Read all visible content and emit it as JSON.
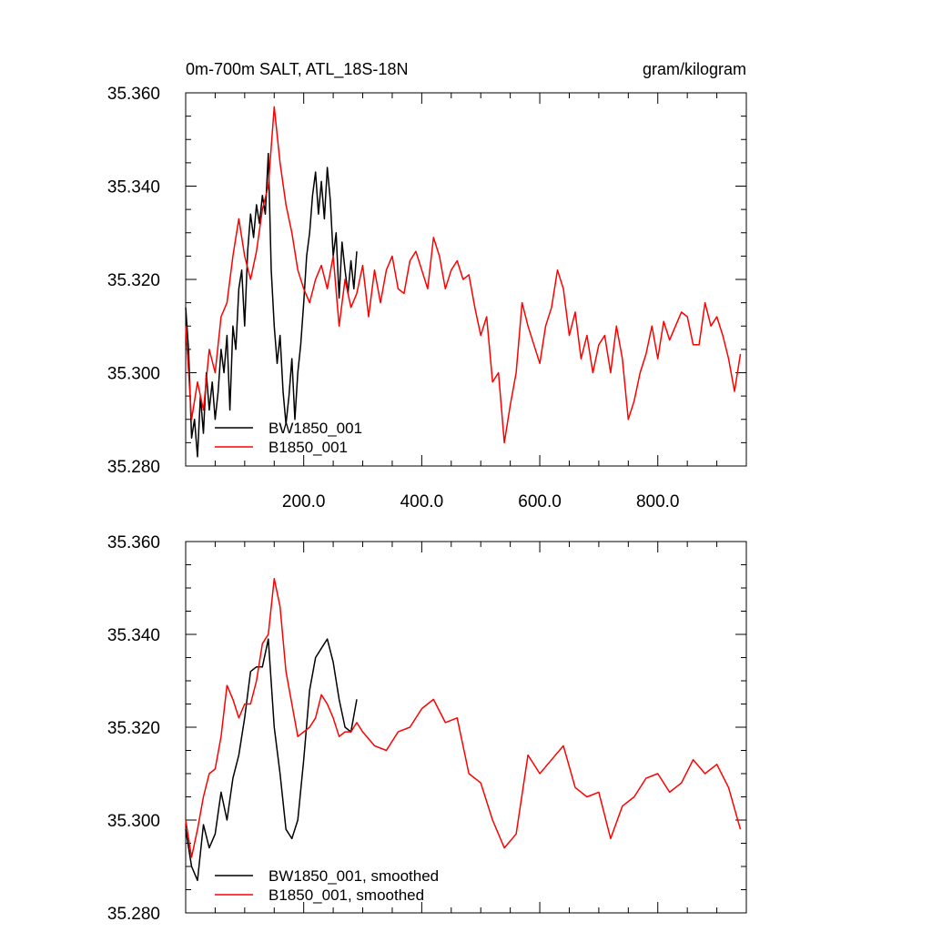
{
  "chart_data": [
    {
      "type": "line",
      "title": "0m-700m SALT, ATL_18S-18N",
      "units": "gram/kilogram",
      "xlim": [
        0,
        950
      ],
      "ylim": [
        35.28,
        35.36
      ],
      "xticks": [
        200,
        400,
        600,
        800
      ],
      "xtick_labels": [
        "200.0",
        "400.0",
        "600.0",
        "800.0"
      ],
      "yticks": [
        35.28,
        35.3,
        35.32,
        35.34,
        35.36
      ],
      "ytick_labels": [
        "35.280",
        "35.300",
        "35.320",
        "35.340",
        "35.360"
      ],
      "legend": "bottom-left",
      "series": [
        {
          "name": "BW1850_001",
          "color": "#000000",
          "x": [
            0,
            5,
            10,
            15,
            20,
            25,
            30,
            35,
            40,
            45,
            50,
            55,
            60,
            65,
            70,
            75,
            80,
            85,
            90,
            95,
            100,
            105,
            110,
            115,
            120,
            125,
            130,
            135,
            140,
            145,
            150,
            155,
            160,
            165,
            170,
            175,
            180,
            185,
            190,
            195,
            200,
            205,
            210,
            215,
            220,
            225,
            230,
            235,
            240,
            245,
            250,
            255,
            260,
            265,
            270,
            275,
            280,
            285,
            290
          ],
          "values": [
            35.314,
            35.305,
            35.286,
            35.29,
            35.282,
            35.295,
            35.287,
            35.3,
            35.292,
            35.298,
            35.29,
            35.296,
            35.305,
            35.3,
            35.308,
            35.292,
            35.31,
            35.305,
            35.318,
            35.322,
            35.31,
            35.326,
            35.334,
            35.329,
            35.336,
            35.332,
            35.338,
            35.334,
            35.347,
            35.322,
            35.31,
            35.302,
            35.308,
            35.296,
            35.289,
            35.295,
            35.303,
            35.29,
            35.3,
            35.306,
            35.315,
            35.325,
            35.33,
            35.338,
            35.343,
            35.334,
            35.341,
            35.333,
            35.344,
            35.337,
            35.325,
            35.33,
            35.316,
            35.328,
            35.322,
            35.317,
            35.324,
            35.318,
            35.326
          ]
        },
        {
          "name": "B1850_001",
          "color": "#ff0000",
          "x": [
            0,
            10,
            20,
            30,
            40,
            50,
            60,
            70,
            80,
            90,
            100,
            110,
            120,
            130,
            140,
            150,
            160,
            170,
            180,
            190,
            200,
            210,
            220,
            230,
            240,
            250,
            260,
            270,
            280,
            290,
            300,
            310,
            320,
            330,
            340,
            350,
            360,
            370,
            380,
            390,
            400,
            410,
            420,
            430,
            440,
            450,
            460,
            470,
            480,
            490,
            500,
            510,
            520,
            530,
            540,
            550,
            560,
            570,
            580,
            590,
            600,
            610,
            620,
            630,
            640,
            650,
            660,
            670,
            680,
            690,
            700,
            710,
            720,
            730,
            740,
            750,
            760,
            770,
            780,
            790,
            800,
            810,
            820,
            830,
            840,
            850,
            860,
            870,
            880,
            890,
            900,
            910,
            920,
            930,
            940
          ],
          "values": [
            35.31,
            35.29,
            35.298,
            35.292,
            35.305,
            35.3,
            35.312,
            35.315,
            35.325,
            35.333,
            35.325,
            35.32,
            35.326,
            35.335,
            35.34,
            35.357,
            35.345,
            35.336,
            35.33,
            35.322,
            35.318,
            35.315,
            35.32,
            35.323,
            35.318,
            35.325,
            35.31,
            35.32,
            35.314,
            35.317,
            35.323,
            35.312,
            35.322,
            35.315,
            35.322,
            35.325,
            35.318,
            35.317,
            35.324,
            35.326,
            35.322,
            35.318,
            35.329,
            35.325,
            35.318,
            35.322,
            35.324,
            35.32,
            35.321,
            35.314,
            35.308,
            35.312,
            35.298,
            35.3,
            35.285,
            35.293,
            35.3,
            35.315,
            35.31,
            35.306,
            35.302,
            35.31,
            35.314,
            35.322,
            35.318,
            35.308,
            35.313,
            35.303,
            35.308,
            35.3,
            35.306,
            35.308,
            35.3,
            35.31,
            35.303,
            35.29,
            35.294,
            35.3,
            35.304,
            35.31,
            35.303,
            35.311,
            35.307,
            35.31,
            35.313,
            35.312,
            35.306,
            35.306,
            35.315,
            35.31,
            35.312,
            35.308,
            35.303,
            35.296,
            35.304
          ]
        }
      ]
    },
    {
      "type": "line",
      "xlim": [
        0,
        950
      ],
      "ylim": [
        35.28,
        35.36
      ],
      "yticks": [
        35.28,
        35.3,
        35.32,
        35.34,
        35.36
      ],
      "ytick_labels": [
        "35.280",
        "35.300",
        "35.320",
        "35.340",
        "35.360"
      ],
      "legend": "bottom-left",
      "series": [
        {
          "name": "BW1850_001, smoothed",
          "color": "#000000",
          "x": [
            0,
            10,
            20,
            30,
            40,
            50,
            60,
            70,
            80,
            90,
            100,
            110,
            120,
            130,
            140,
            150,
            160,
            170,
            180,
            190,
            200,
            210,
            220,
            230,
            240,
            250,
            260,
            270,
            280,
            290
          ],
          "values": [
            35.298,
            35.29,
            35.287,
            35.299,
            35.294,
            35.297,
            35.306,
            35.3,
            35.309,
            35.314,
            35.322,
            35.332,
            35.333,
            35.333,
            35.339,
            35.32,
            35.31,
            35.298,
            35.296,
            35.3,
            35.313,
            35.328,
            35.335,
            35.337,
            35.339,
            35.334,
            35.326,
            35.32,
            35.319,
            35.326
          ]
        },
        {
          "name": "B1850_001, smoothed",
          "color": "#ff0000",
          "x": [
            0,
            10,
            20,
            30,
            40,
            50,
            60,
            70,
            80,
            90,
            100,
            110,
            120,
            130,
            140,
            150,
            160,
            170,
            180,
            190,
            200,
            210,
            220,
            230,
            240,
            250,
            260,
            270,
            280,
            290,
            300,
            320,
            340,
            360,
            380,
            400,
            420,
            440,
            460,
            480,
            500,
            520,
            540,
            560,
            580,
            600,
            620,
            640,
            660,
            680,
            700,
            720,
            740,
            760,
            780,
            800,
            820,
            840,
            860,
            880,
            900,
            920,
            940
          ],
          "values": [
            35.3,
            35.292,
            35.298,
            35.305,
            35.31,
            35.311,
            35.318,
            35.329,
            35.326,
            35.322,
            35.325,
            35.325,
            35.33,
            35.338,
            35.34,
            35.352,
            35.346,
            35.332,
            35.325,
            35.318,
            35.319,
            35.32,
            35.322,
            35.327,
            35.325,
            35.322,
            35.318,
            35.319,
            35.319,
            35.321,
            35.319,
            35.316,
            35.315,
            35.319,
            35.32,
            35.324,
            35.326,
            35.321,
            35.322,
            35.31,
            35.308,
            35.3,
            35.294,
            35.297,
            35.314,
            35.31,
            35.313,
            35.316,
            35.307,
            35.305,
            35.306,
            35.296,
            35.303,
            35.305,
            35.309,
            35.31,
            35.306,
            35.308,
            35.313,
            35.31,
            35.312,
            35.307,
            35.298
          ]
        }
      ]
    }
  ]
}
